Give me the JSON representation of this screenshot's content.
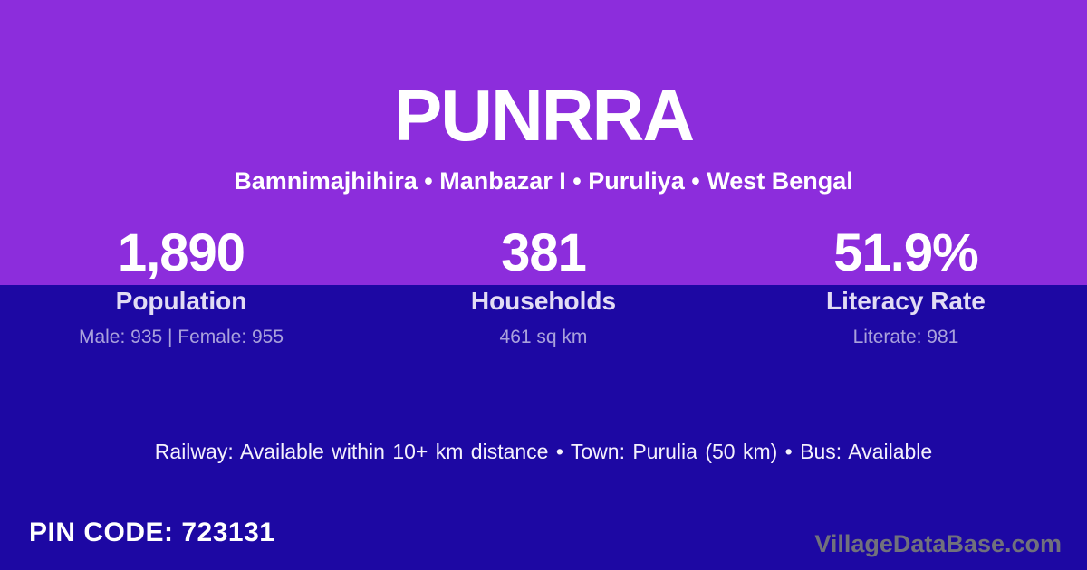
{
  "village": {
    "title": "PUNRRA",
    "location_line": "Bamnimajhihira • Manbazar I • Puruliya • West Bengal"
  },
  "stats": [
    {
      "value": "1,890",
      "label": "Population",
      "detail": "Male: 935 | Female: 955"
    },
    {
      "value": "381",
      "label": "Households",
      "detail": "461 sq km"
    },
    {
      "value": "51.9%",
      "label": "Literacy Rate",
      "detail": "Literate: 981"
    }
  ],
  "transport": {
    "text": "Railway: Available within 10+ km distance • Town: Purulia (50 km) • Bus: Available"
  },
  "footer": {
    "pin_code": "PIN CODE: 723131",
    "watermark": "VillageDataBase.com"
  },
  "colors": {
    "top_bg": "#8C2DDC",
    "bottom_bg": "#1D08A3",
    "watermark_text": "#71717C"
  }
}
